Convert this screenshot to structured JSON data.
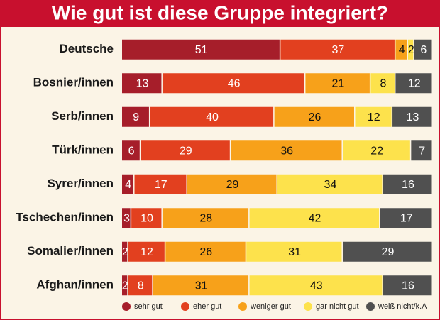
{
  "chart_data": {
    "type": "stacked-bar",
    "orientation": "horizontal",
    "title": "Wie gut ist diese Gruppe integriert?",
    "categories": [
      "Deutsche",
      "Bosnier/innen",
      "Serb/innen",
      "Türk/innen",
      "Syrer/innen",
      "Tschechen/innen",
      "Somalier/innen",
      "Afghan/innen"
    ],
    "series": [
      {
        "name": "sehr gut",
        "color": "#a61e2a",
        "values": [
          51,
          13,
          9,
          6,
          4,
          3,
          2,
          2
        ]
      },
      {
        "name": "eher gut",
        "color": "#e2401f",
        "values": [
          37,
          46,
          40,
          29,
          17,
          10,
          12,
          8
        ]
      },
      {
        "name": "weniger gut",
        "color": "#f7a11a",
        "values": [
          4,
          21,
          26,
          36,
          29,
          28,
          26,
          31
        ]
      },
      {
        "name": "gar nicht gut",
        "color": "#fde24c",
        "values": [
          2,
          8,
          12,
          22,
          34,
          42,
          31,
          43
        ]
      },
      {
        "name": "weiß nicht/k.A",
        "color": "#505050",
        "values": [
          6,
          12,
          13,
          7,
          16,
          17,
          29,
          16
        ]
      }
    ]
  }
}
